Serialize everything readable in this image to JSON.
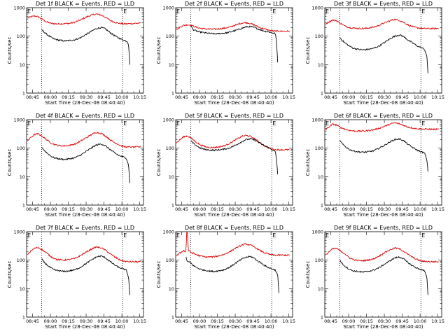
{
  "chart_data": {
    "type": "line",
    "layout": "3x3 grid",
    "xlabel": "Start Time (28-Dec-08 08:40:40)",
    "ylabel": "Counts/sec",
    "y_scale": "log",
    "ylim": [
      1,
      1000
    ],
    "ytick_labels": [
      "1",
      "10",
      "100",
      "1000"
    ],
    "xlim_minutes": [
      -0.67,
      97.5
    ],
    "xtick_labels": [
      "08:45",
      "09:00",
      "09:15",
      "09:30",
      "09:45",
      "10:00",
      "10:15"
    ],
    "marker_label": "E",
    "series_colors": {
      "events": "#000000",
      "lld": "#dd0000"
    },
    "panels": [
      {
        "title": "Det 1f BLACK = Events, RED = LLD",
        "dotted_x_min": [
          12,
          80
        ],
        "events": {
          "x": [
            12,
            14,
            17,
            20,
            23,
            27,
            31,
            35,
            40,
            45,
            50,
            55,
            58,
            62,
            65,
            68,
            71,
            74,
            77,
            80,
            82,
            84,
            85,
            86
          ],
          "y": [
            170,
            140,
            110,
            90,
            78,
            72,
            68,
            70,
            75,
            90,
            120,
            160,
            185,
            200,
            185,
            150,
            120,
            100,
            85,
            75,
            70,
            65,
            50,
            10
          ]
        },
        "lld": {
          "x": [
            0,
            3,
            6,
            9,
            12,
            16,
            20,
            25,
            30,
            35,
            40,
            45,
            50,
            55,
            58,
            62,
            66,
            70,
            74,
            78,
            82,
            86,
            90,
            95
          ],
          "y": [
            430,
            480,
            510,
            480,
            400,
            320,
            280,
            270,
            275,
            280,
            310,
            380,
            480,
            570,
            600,
            550,
            450,
            350,
            300,
            280,
            270,
            275,
            280,
            290
          ]
        }
      },
      {
        "title": "Det 2f BLACK = Events, RED = LLD",
        "dotted_x_min": [
          12,
          80
        ],
        "events": {
          "x": [
            12,
            14,
            17,
            20,
            24,
            28,
            33,
            38,
            44,
            50,
            55,
            58,
            62,
            66,
            70,
            74,
            78,
            81,
            83,
            84,
            85
          ],
          "y": [
            230,
            170,
            150,
            140,
            130,
            125,
            120,
            125,
            135,
            160,
            190,
            210,
            215,
            200,
            170,
            150,
            140,
            130,
            125,
            60,
            12
          ]
        },
        "lld": {
          "x": [
            0,
            3,
            6,
            9,
            12,
            16,
            20,
            25,
            30,
            35,
            40,
            45,
            50,
            55,
            58,
            62,
            66,
            70,
            74,
            78,
            82,
            86,
            90,
            95
          ],
          "y": [
            170,
            210,
            240,
            250,
            245,
            210,
            190,
            180,
            175,
            180,
            190,
            210,
            250,
            290,
            300,
            280,
            240,
            200,
            180,
            160,
            150,
            150,
            150,
            150
          ]
        }
      },
      {
        "title": "Det 3f BLACK = Events, RED = LLD",
        "dotted_x_min": [
          12,
          80
        ],
        "events": {
          "x": [
            12,
            14,
            17,
            20,
            23,
            27,
            31,
            35,
            40,
            45,
            50,
            55,
            58,
            62,
            65,
            68,
            71,
            74,
            77,
            80,
            83,
            85,
            86
          ],
          "y": [
            90,
            70,
            55,
            45,
            38,
            35,
            33,
            34,
            37,
            45,
            62,
            85,
            100,
            110,
            100,
            80,
            65,
            55,
            45,
            40,
            35,
            20,
            5
          ]
        },
        "lld": {
          "x": [
            0,
            3,
            6,
            9,
            12,
            16,
            20,
            25,
            30,
            35,
            40,
            45,
            50,
            55,
            58,
            62,
            66,
            70,
            74,
            78,
            82,
            86,
            90,
            95
          ],
          "y": [
            270,
            320,
            370,
            350,
            290,
            230,
            200,
            190,
            185,
            190,
            205,
            240,
            300,
            360,
            390,
            360,
            300,
            240,
            210,
            195,
            185,
            185,
            185,
            185
          ]
        }
      },
      {
        "title": "Det 4f BLACK = Events, RED = LLD",
        "dotted_x_min": [
          12,
          80
        ],
        "events": {
          "x": [
            12,
            14,
            17,
            20,
            23,
            27,
            31,
            35,
            40,
            45,
            50,
            55,
            58,
            62,
            65,
            68,
            71,
            74,
            77,
            80,
            83,
            85,
            86
          ],
          "y": [
            110,
            85,
            65,
            52,
            45,
            42,
            40,
            42,
            46,
            58,
            80,
            110,
            130,
            140,
            125,
            100,
            80,
            65,
            55,
            50,
            45,
            25,
            6
          ]
        },
        "lld": {
          "x": [
            0,
            3,
            6,
            9,
            12,
            16,
            20,
            25,
            30,
            35,
            40,
            45,
            50,
            55,
            58,
            62,
            66,
            70,
            74,
            78,
            82,
            86,
            90,
            95
          ],
          "y": [
            180,
            240,
            300,
            320,
            270,
            200,
            150,
            125,
            120,
            125,
            140,
            180,
            240,
            320,
            360,
            330,
            260,
            190,
            150,
            125,
            110,
            110,
            110,
            110
          ]
        }
      },
      {
        "title": "Det 5f BLACK = Events, RED = LLD",
        "dotted_x_min": [
          12,
          80
        ],
        "events": {
          "x": [
            12,
            14,
            17,
            20,
            24,
            28,
            33,
            38,
            44,
            50,
            55,
            58,
            62,
            66,
            70,
            74,
            78,
            81,
            83,
            84,
            85
          ],
          "y": [
            180,
            150,
            120,
            100,
            90,
            85,
            85,
            90,
            100,
            130,
            170,
            200,
            210,
            190,
            150,
            120,
            100,
            85,
            75,
            40,
            12
          ]
        },
        "lld": {
          "x": [
            0,
            3,
            6,
            9,
            12,
            16,
            20,
            25,
            30,
            35,
            40,
            45,
            50,
            55,
            58,
            62,
            66,
            70,
            74,
            78,
            82,
            86,
            90,
            95
          ],
          "y": [
            150,
            200,
            250,
            270,
            230,
            170,
            130,
            110,
            105,
            110,
            120,
            150,
            200,
            260,
            280,
            260,
            210,
            160,
            120,
            100,
            90,
            88,
            88,
            88
          ]
        }
      },
      {
        "title": "Det 6f BLACK = Events, RED = LLD",
        "dotted_x_min": [
          12,
          80
        ],
        "events": {
          "x": [
            12,
            14,
            17,
            20,
            23,
            27,
            31,
            35,
            40,
            45,
            50,
            55,
            58,
            62,
            65,
            68,
            71,
            74,
            77,
            80,
            83,
            85,
            86
          ],
          "y": [
            190,
            140,
            110,
            90,
            80,
            75,
            72,
            74,
            80,
            100,
            130,
            175,
            200,
            210,
            190,
            150,
            120,
            100,
            85,
            75,
            68,
            40,
            15
          ]
        },
        "lld": {
          "x": [
            0,
            3,
            6,
            9,
            12,
            16,
            20,
            25,
            30,
            35,
            40,
            45,
            50,
            55,
            58,
            62,
            66,
            70,
            74,
            78,
            82,
            86,
            90,
            95
          ],
          "y": [
            450,
            560,
            700,
            650,
            550,
            470,
            420,
            400,
            400,
            410,
            440,
            500,
            600,
            720,
            770,
            720,
            620,
            540,
            500,
            480,
            470,
            465,
            460,
            460
          ]
        }
      },
      {
        "title": "Det 7f BLACK = Events, RED = LLD",
        "dotted_x_min": [
          12,
          80
        ],
        "events": {
          "x": [
            12,
            14,
            17,
            20,
            23,
            27,
            31,
            35,
            40,
            45,
            50,
            55,
            58,
            62,
            65,
            68,
            71,
            74,
            77,
            80,
            83,
            85,
            86
          ],
          "y": [
            110,
            85,
            65,
            52,
            45,
            42,
            40,
            42,
            46,
            58,
            80,
            110,
            130,
            140,
            125,
            100,
            80,
            65,
            55,
            50,
            45,
            25,
            6
          ]
        },
        "lld": {
          "x": [
            0,
            3,
            6,
            9,
            12,
            16,
            20,
            25,
            30,
            35,
            40,
            45,
            50,
            55,
            58,
            62,
            66,
            70,
            74,
            78,
            82,
            86,
            90,
            95
          ],
          "y": [
            160,
            210,
            260,
            280,
            240,
            180,
            130,
            105,
            100,
            105,
            115,
            150,
            200,
            260,
            290,
            270,
            220,
            160,
            125,
            100,
            90,
            88,
            88,
            88
          ]
        }
      },
      {
        "title": "Det 8f BLACK = Events, RED = LLD",
        "dotted_x_min": [
          12,
          80
        ],
        "events": {
          "x": [
            8,
            9,
            12,
            14,
            17,
            20,
            23,
            27,
            31,
            35,
            40,
            45,
            50,
            55,
            58,
            62,
            65,
            68,
            71,
            74,
            77,
            80,
            83,
            85,
            86
          ],
          "y": [
            130,
            90,
            80,
            65,
            55,
            48,
            45,
            42,
            40,
            42,
            46,
            58,
            80,
            110,
            125,
            135,
            120,
            95,
            80,
            65,
            55,
            50,
            45,
            30,
            7
          ]
        },
        "lld": {
          "x": [
            0,
            3,
            6,
            7,
            8,
            8.5,
            9,
            10,
            12,
            16,
            20,
            25,
            30,
            35,
            40,
            45,
            50,
            55,
            58,
            62,
            66,
            70,
            74,
            78,
            82,
            86,
            90,
            95
          ],
          "y": [
            140,
            180,
            220,
            200,
            210,
            1000,
            1000,
            220,
            190,
            160,
            140,
            130,
            130,
            140,
            160,
            200,
            270,
            340,
            370,
            340,
            280,
            220,
            180,
            160,
            150,
            150,
            150,
            150
          ]
        }
      },
      {
        "title": "Det 9f BLACK = Events, RED = LLD",
        "dotted_x_min": [
          12,
          80
        ],
        "events": {
          "x": [
            12,
            14,
            17,
            20,
            23,
            27,
            31,
            35,
            40,
            45,
            50,
            55,
            58,
            62,
            65,
            68,
            71,
            74,
            77,
            80,
            83,
            85,
            86
          ],
          "y": [
            100,
            75,
            58,
            48,
            42,
            40,
            38,
            40,
            44,
            55,
            75,
            100,
            120,
            130,
            115,
            90,
            72,
            60,
            52,
            47,
            42,
            25,
            6
          ]
        },
        "lld": {
          "x": [
            0,
            3,
            6,
            9,
            12,
            16,
            20,
            25,
            30,
            35,
            40,
            45,
            50,
            55,
            58,
            62,
            66,
            70,
            74,
            78,
            82,
            86,
            90,
            95
          ],
          "y": [
            150,
            200,
            250,
            260,
            220,
            170,
            120,
            100,
            95,
            100,
            110,
            140,
            190,
            240,
            270,
            250,
            200,
            150,
            120,
            100,
            90,
            90,
            88,
            88
          ]
        }
      }
    ]
  }
}
